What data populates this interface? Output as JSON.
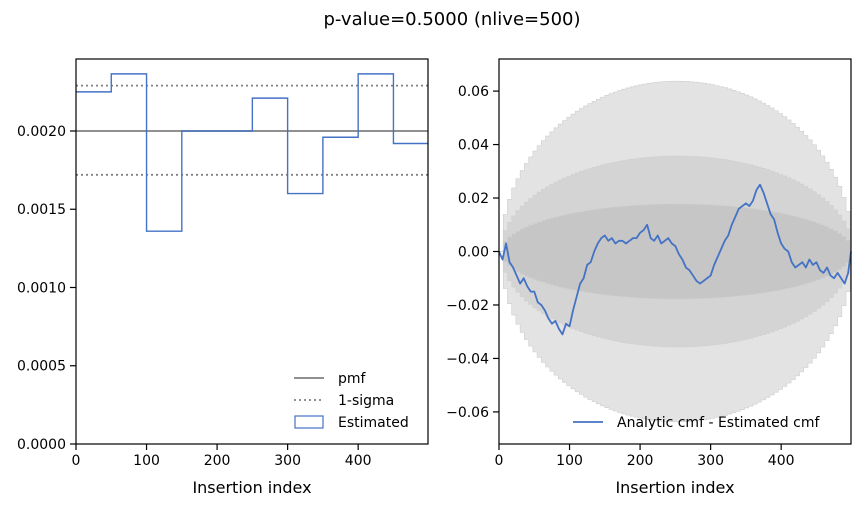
{
  "figure": {
    "title": "p-value=0.5000 (nlive=500)"
  },
  "chart_data": [
    {
      "type": "step",
      "xlabel": "Insertion index",
      "ylabel": "",
      "xlim": [
        0,
        499
      ],
      "ylim": [
        0,
        0.00246
      ],
      "xticks": [
        0,
        100,
        200,
        300,
        400
      ],
      "xtick_labels": [
        "0",
        "100",
        "200",
        "300",
        "400"
      ],
      "yticks": [
        0,
        0.0005,
        0.001,
        0.0015,
        0.002
      ],
      "ytick_labels": [
        "0.0000",
        "0.0005",
        "0.0010",
        "0.0015",
        "0.0020"
      ],
      "pmf": 0.002,
      "sigma_upper": 0.00229,
      "sigma_lower": 0.00172,
      "bin_edges": [
        0,
        50,
        100,
        150,
        200,
        250,
        300,
        350,
        400,
        450,
        499
      ],
      "estimated": [
        0.00225,
        0.002365,
        0.00136,
        0.002,
        0.002,
        0.00221,
        0.0016,
        0.00196,
        0.002365,
        0.00192
      ],
      "legend": [
        {
          "label": "pmf",
          "style": "solid",
          "color": "#808080"
        },
        {
          "label": "1-sigma",
          "style": "dotted",
          "color": "#808080"
        },
        {
          "label": "Estimated",
          "style": "patch",
          "color": "#4472c4"
        }
      ],
      "legend_loc": "lower-right"
    },
    {
      "type": "line",
      "xlabel": "Insertion index",
      "ylabel": "",
      "xlim": [
        0,
        499
      ],
      "ylim": [
        -0.072,
        0.072
      ],
      "xticks": [
        0,
        100,
        200,
        300,
        400
      ],
      "xtick_labels": [
        "0",
        "100",
        "200",
        "300",
        "400"
      ],
      "yticks": [
        -0.06,
        -0.04,
        -0.02,
        0.0,
        0.02,
        0.04,
        0.06
      ],
      "ytick_labels": [
        "−0.06",
        "−0.04",
        "−0.02",
        "0.00",
        "0.02",
        "0.04",
        "0.06"
      ],
      "bands_sigma": [
        1,
        2,
        3
      ],
      "band_peaks": [
        0.0178,
        0.0357,
        0.0637
      ],
      "band_colors": [
        "#c6c6c6",
        "#d4d4d4",
        "#e3e3e3"
      ],
      "series": [
        {
          "name": "Analytic cmf - Estimated cmf",
          "color": "#4472c4",
          "x": [
            0,
            5,
            10,
            15,
            20,
            25,
            30,
            35,
            40,
            45,
            50,
            55,
            60,
            65,
            70,
            75,
            80,
            85,
            90,
            95,
            100,
            105,
            110,
            115,
            120,
            125,
            130,
            135,
            140,
            145,
            150,
            155,
            160,
            165,
            170,
            175,
            180,
            185,
            190,
            195,
            200,
            205,
            210,
            215,
            220,
            225,
            230,
            235,
            240,
            245,
            250,
            255,
            260,
            265,
            270,
            275,
            280,
            285,
            290,
            295,
            300,
            305,
            310,
            315,
            320,
            325,
            330,
            335,
            340,
            345,
            350,
            355,
            360,
            365,
            370,
            375,
            380,
            385,
            390,
            395,
            400,
            405,
            410,
            415,
            420,
            425,
            430,
            435,
            440,
            445,
            450,
            455,
            460,
            465,
            470,
            475,
            480,
            485,
            490,
            495,
            499
          ],
          "y": [
            0.0,
            -0.003,
            0.003,
            -0.004,
            -0.006,
            -0.009,
            -0.012,
            -0.01,
            -0.013,
            -0.015,
            -0.015,
            -0.019,
            -0.02,
            -0.022,
            -0.025,
            -0.027,
            -0.026,
            -0.029,
            -0.031,
            -0.027,
            -0.028,
            -0.022,
            -0.017,
            -0.012,
            -0.01,
            -0.005,
            -0.004,
            0.0,
            0.003,
            0.005,
            0.006,
            0.004,
            0.005,
            0.003,
            0.004,
            0.004,
            0.003,
            0.004,
            0.005,
            0.005,
            0.007,
            0.008,
            0.01,
            0.005,
            0.004,
            0.006,
            0.003,
            0.004,
            0.005,
            0.003,
            0.002,
            -0.001,
            -0.003,
            -0.006,
            -0.007,
            -0.009,
            -0.011,
            -0.012,
            -0.011,
            -0.01,
            -0.009,
            -0.005,
            -0.002,
            0.001,
            0.004,
            0.006,
            0.01,
            0.013,
            0.016,
            0.017,
            0.018,
            0.017,
            0.019,
            0.023,
            0.025,
            0.022,
            0.018,
            0.014,
            0.012,
            0.007,
            0.003,
            0.001,
            0.0,
            -0.004,
            -0.006,
            -0.005,
            -0.004,
            -0.006,
            -0.003,
            -0.005,
            -0.004,
            -0.007,
            -0.008,
            -0.006,
            -0.009,
            -0.01,
            -0.008,
            -0.01,
            -0.012,
            -0.008,
            0.0
          ]
        }
      ],
      "legend_loc": "lower-right"
    }
  ]
}
